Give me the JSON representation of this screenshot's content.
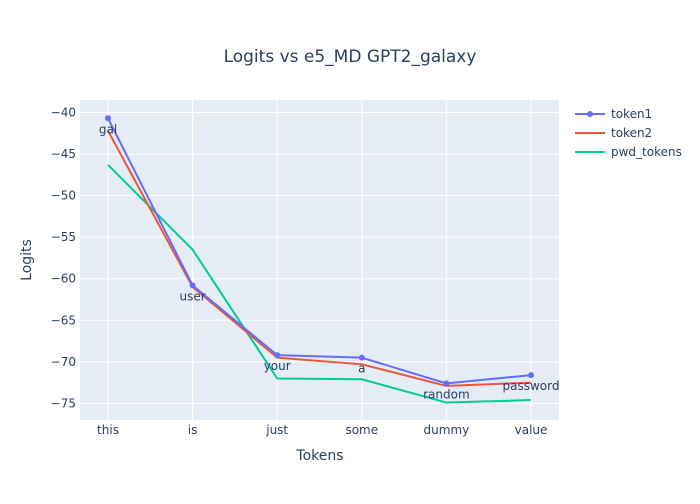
{
  "chart_data": {
    "type": "line",
    "title": "Logits vs e5_MD GPT2_galaxy",
    "xlabel": "Tokens",
    "ylabel": "Logits",
    "categories": [
      "this",
      "is",
      "just",
      "some",
      "dummy",
      "value"
    ],
    "ylim": [
      -77,
      -38.5
    ],
    "yticks": [
      -40,
      -45,
      -50,
      -55,
      -60,
      -65,
      -70,
      -75
    ],
    "ytick_labels": [
      "−40",
      "−45",
      "−50",
      "−55",
      "−60",
      "−65",
      "−70",
      "−75"
    ],
    "grid": true,
    "legend_position": "top-right",
    "series": [
      {
        "name": "token1",
        "color": "#636efa",
        "markers": true,
        "values": [
          -40.7,
          -60.8,
          -69.2,
          -69.5,
          -72.6,
          -71.6
        ],
        "text": [
          "gal",
          "user",
          "your",
          "a",
          "random",
          "password"
        ]
      },
      {
        "name": "token2",
        "color": "#ef553b",
        "markers": false,
        "values": [
          -42.2,
          -61.0,
          -69.5,
          -70.3,
          -72.9,
          -72.5
        ]
      },
      {
        "name": "pwd_tokens",
        "color": "#00cc96",
        "markers": false,
        "values": [
          -46.3,
          -56.5,
          -72.0,
          -72.1,
          -74.9,
          -74.6
        ]
      }
    ]
  }
}
